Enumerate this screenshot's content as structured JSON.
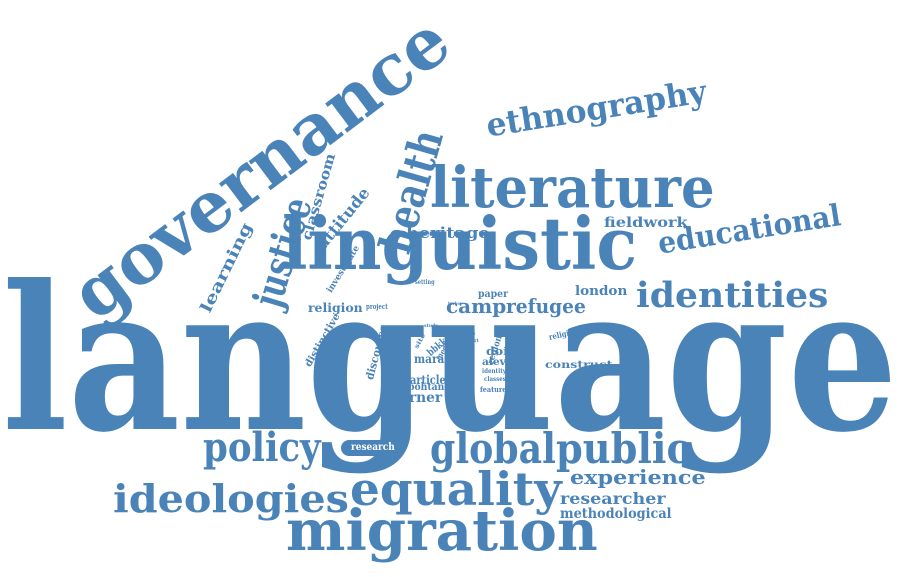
{
  "colors": {
    "text": "#4a83b8",
    "background": "#ffffff"
  },
  "words": [
    "language",
    "governance",
    "linguistic",
    "literature",
    "ethnography",
    "identities",
    "educational",
    "migration",
    "equality",
    "ideologies",
    "global",
    "public",
    "policy",
    "justice",
    "health",
    "experience",
    "researcher",
    "methodological",
    "learning",
    "classroom",
    "attitude",
    "heritage",
    "fieldwork",
    "camp",
    "refugee",
    "london",
    "paper",
    "religion",
    "project",
    "setting",
    "turkey",
    "investigate",
    "distinctive",
    "discourse",
    "study",
    "site",
    "bbkk",
    "media",
    "issue",
    "report",
    "religious",
    "region",
    "doing",
    "alevis",
    "construct",
    "identity",
    "classes",
    "feature",
    "article",
    "maraş",
    "bohtan",
    "learner",
    "research"
  ]
}
